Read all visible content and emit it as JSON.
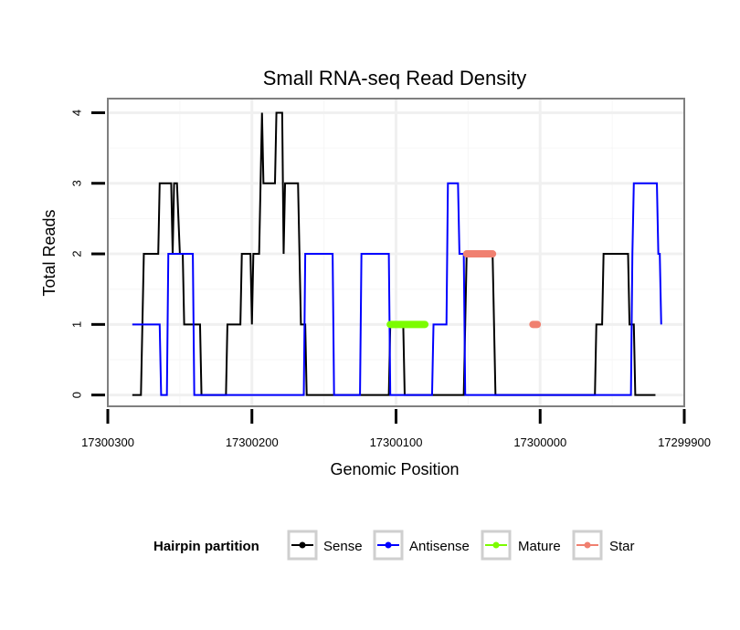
{
  "chart_data": {
    "type": "line",
    "title": "Small RNA-seq Read Density",
    "xlabel": "Genomic Position",
    "ylabel": "Total Reads",
    "xlim": [
      17300300,
      17299900
    ],
    "ylim": [
      0,
      4
    ],
    "x_reversed": true,
    "x_ticks": [
      17300300,
      17300200,
      17300100,
      17300000,
      17299900
    ],
    "x_tick_labels": [
      "17300300",
      "17300200",
      "17300100",
      "17300000",
      "17299900"
    ],
    "y_ticks": [
      0,
      1,
      2,
      3,
      4
    ],
    "y_tick_labels": [
      "0",
      "1",
      "2",
      "3",
      "4"
    ],
    "legend": {
      "title": "Hairpin partition",
      "position": "bottom",
      "entries": [
        {
          "label": "Sense",
          "color": "#000000"
        },
        {
          "label": "Antisense",
          "color": "#0000ff"
        },
        {
          "label": "Mature",
          "color": "#7cfc00"
        },
        {
          "label": "Star",
          "color": "#f08070"
        }
      ]
    },
    "series": [
      {
        "name": "Sense",
        "color": "#000000",
        "points": [
          [
            17300283,
            0
          ],
          [
            17300277,
            0
          ],
          [
            17300275,
            2
          ],
          [
            17300272,
            2
          ],
          [
            17300265,
            2
          ],
          [
            17300264,
            3
          ],
          [
            17300256,
            3
          ],
          [
            17300255,
            2
          ],
          [
            17300254,
            3
          ],
          [
            17300252,
            3
          ],
          [
            17300250,
            2
          ],
          [
            17300248,
            2
          ],
          [
            17300247,
            1
          ],
          [
            17300236,
            1
          ],
          [
            17300235,
            0
          ],
          [
            17300218,
            0
          ],
          [
            17300217,
            1
          ],
          [
            17300208,
            1
          ],
          [
            17300207,
            2
          ],
          [
            17300201,
            2
          ],
          [
            17300200,
            1
          ],
          [
            17300199,
            2
          ],
          [
            17300195,
            2
          ],
          [
            17300194,
            3
          ],
          [
            17300193,
            4
          ],
          [
            17300192,
            3
          ],
          [
            17300184,
            3
          ],
          [
            17300183,
            4
          ],
          [
            17300179,
            4
          ],
          [
            17300178,
            2
          ],
          [
            17300177,
            3
          ],
          [
            17300168,
            3
          ],
          [
            17300167,
            2
          ],
          [
            17300166,
            1
          ],
          [
            17300163,
            1
          ],
          [
            17300162,
            0
          ],
          [
            17300105,
            0
          ],
          [
            17300104,
            1
          ],
          [
            17300095,
            1
          ],
          [
            17300094,
            0
          ],
          [
            17300053,
            0
          ],
          [
            17300052,
            1
          ],
          [
            17300051,
            2
          ],
          [
            17300033,
            2
          ],
          [
            17300032,
            1
          ],
          [
            17300031,
            0
          ],
          [
            17299962,
            0
          ],
          [
            17299961,
            1
          ],
          [
            17299957,
            1
          ],
          [
            17299956,
            2
          ],
          [
            17299939,
            2
          ],
          [
            17299938,
            1
          ],
          [
            17299935,
            1
          ],
          [
            17299934,
            0
          ],
          [
            17299920,
            0
          ]
        ]
      },
      {
        "name": "Antisense",
        "color": "#0000ff",
        "points": [
          [
            17300283,
            1
          ],
          [
            17300264,
            1
          ],
          [
            17300263,
            0
          ],
          [
            17300259,
            0
          ],
          [
            17300258,
            2
          ],
          [
            17300241,
            2
          ],
          [
            17300240,
            0
          ],
          [
            17300164,
            0
          ],
          [
            17300163,
            2
          ],
          [
            17300144,
            2
          ],
          [
            17300143,
            0
          ],
          [
            17300125,
            0
          ],
          [
            17300124,
            2
          ],
          [
            17300105,
            2
          ],
          [
            17300104,
            0
          ],
          [
            17300075,
            0
          ],
          [
            17300074,
            1
          ],
          [
            17300065,
            1
          ],
          [
            17300064,
            3
          ],
          [
            17300057,
            3
          ],
          [
            17300056,
            2
          ],
          [
            17300053,
            2
          ],
          [
            17300052,
            0
          ],
          [
            17299937,
            0
          ],
          [
            17299936,
            2
          ],
          [
            17299935,
            3
          ],
          [
            17299919,
            3
          ],
          [
            17299918,
            2
          ],
          [
            17299917,
            2
          ],
          [
            17299916,
            1
          ]
        ]
      },
      {
        "name": "Mature",
        "color": "#7cfc00",
        "points": [
          [
            17300104,
            1
          ],
          [
            17300080,
            1
          ]
        ]
      },
      {
        "name": "Star",
        "color": "#f08070",
        "points": [
          [
            17300051,
            2
          ],
          [
            17300033,
            2
          ]
        ]
      },
      {
        "name": "Star",
        "color": "#f08070",
        "points": [
          [
            17300005,
            1
          ],
          [
            17300002,
            1
          ]
        ]
      }
    ]
  }
}
